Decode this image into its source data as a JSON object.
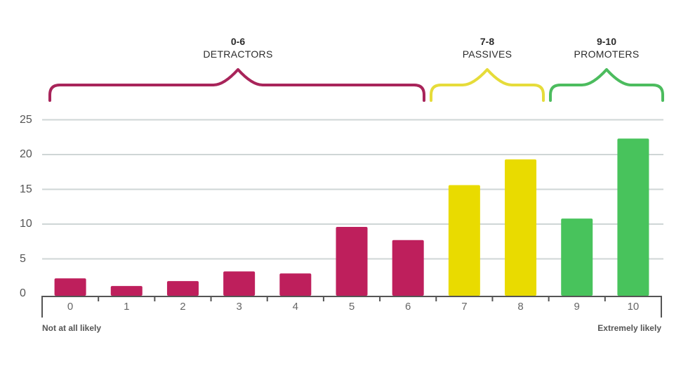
{
  "chart_data": {
    "type": "bar",
    "title": "",
    "xlabel": "",
    "ylabel": "",
    "categories": [
      "0",
      "1",
      "2",
      "3",
      "4",
      "5",
      "6",
      "7",
      "8",
      "9",
      "10"
    ],
    "values": [
      2.2,
      1.1,
      1.8,
      3.2,
      2.9,
      9.6,
      7.7,
      15.6,
      19.3,
      10.8,
      22.3
    ],
    "bar_colors": [
      "#be1f5c",
      "#be1f5c",
      "#be1f5c",
      "#be1f5c",
      "#be1f5c",
      "#be1f5c",
      "#be1f5c",
      "#e9db00",
      "#e9db00",
      "#48c35c",
      "#48c35c"
    ],
    "ylim": [
      0,
      25
    ],
    "yticks": [
      0,
      5,
      10,
      15,
      20,
      25
    ],
    "grid": true,
    "x_end_labels": {
      "left": "Not at all likely",
      "right": "Extremely likely"
    },
    "groups": [
      {
        "range": "0-6",
        "name": "DETRACTORS",
        "from": 0,
        "to": 6,
        "color": "#a8245a"
      },
      {
        "range": "7-8",
        "name": "PASSIVES",
        "from": 7,
        "to": 8,
        "color": "#e6dc3a"
      },
      {
        "range": "9-10",
        "name": "PROMOTERS",
        "from": 9,
        "to": 10,
        "color": "#4cbc5e"
      }
    ]
  }
}
